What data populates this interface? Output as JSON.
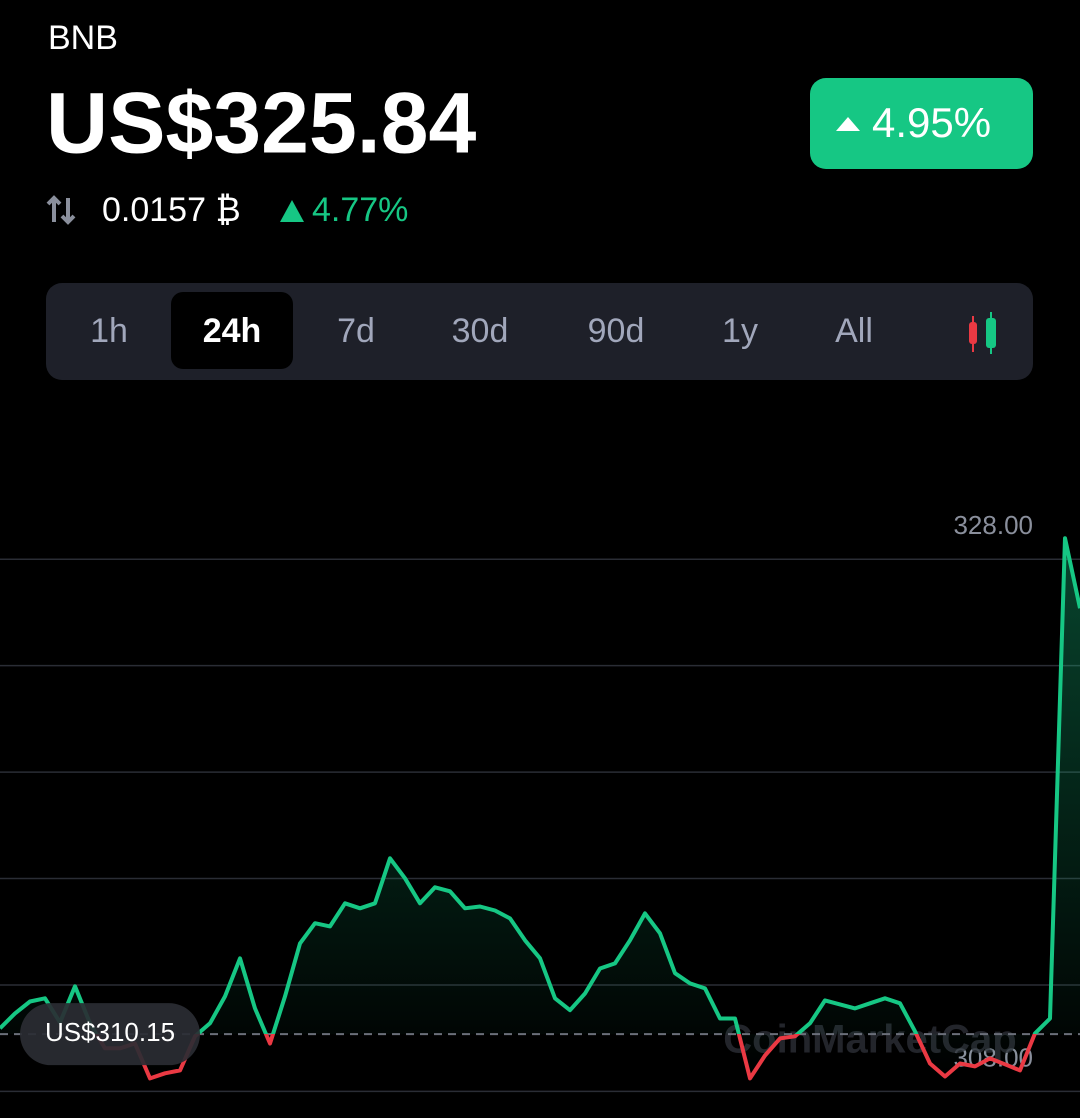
{
  "header": {
    "symbol": "BNB",
    "price": "US$325.84",
    "change": "4.95%",
    "btc_price": "0.0157 ₿",
    "btc_change": "4.77%"
  },
  "timeframes": {
    "options": [
      "1h",
      "24h",
      "7d",
      "30d",
      "90d",
      "1y",
      "All"
    ],
    "selected": 1
  },
  "chart_data": {
    "type": "line",
    "values": [
      310.37,
      310.93,
      311.38,
      311.5,
      310.59,
      311.95,
      310.56,
      309.62,
      309.62,
      309.8,
      308.49,
      308.68,
      308.79,
      310.07,
      310.56,
      311.57,
      313.0,
      311.12,
      309.8,
      311.57,
      313.56,
      314.32,
      314.2,
      315.07,
      314.88,
      315.07,
      316.76,
      316.01,
      315.07,
      315.67,
      315.52,
      314.88,
      314.95,
      314.8,
      314.5,
      313.68,
      313.0,
      311.5,
      311.05,
      311.68,
      312.62,
      312.81,
      313.68,
      314.69,
      313.94,
      312.44,
      312.06,
      311.87,
      310.74,
      310.74,
      308.49,
      309.35,
      309.99,
      310.07,
      310.56,
      311.42,
      311.27,
      311.12,
      311.31,
      311.5,
      311.31,
      310.26,
      309.05,
      308.56,
      309.05,
      308.94,
      309.24,
      309.02,
      308.79,
      310.18,
      310.74,
      328.79,
      326.16
    ],
    "ylim": [
      307,
      330
    ],
    "yticks": [
      {
        "value": 308,
        "label": "308.00"
      },
      {
        "value": 328,
        "label": "328.00"
      }
    ],
    "gridlines": [
      308,
      312,
      316,
      320,
      324,
      328
    ],
    "baseline": {
      "value": 310.15,
      "label": "US$310.15"
    },
    "up_color": "#16c784",
    "down_color": "#ea3943",
    "watermark": "CoinMarketCap"
  }
}
